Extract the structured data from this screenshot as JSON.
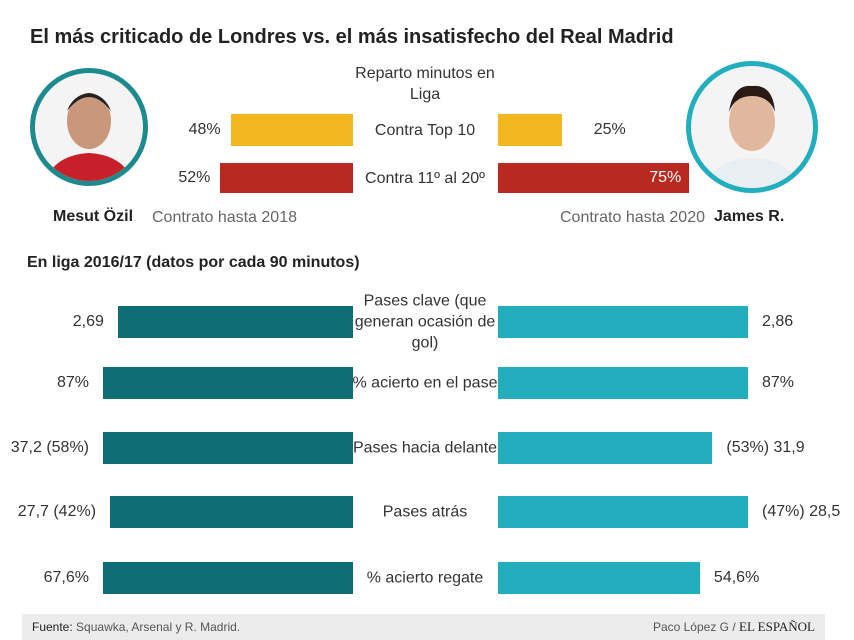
{
  "title": "El más criticado de Londres vs. el más insatisfecho del Real Madrid",
  "players": [
    {
      "name": "Mesut Özil",
      "contract": "Contrato hasta 2018"
    },
    {
      "name": "James R.",
      "contract": "Contrato hasta 2020"
    }
  ],
  "minutes": {
    "title": "Reparto minutos en Liga",
    "categories": [
      "Contra Top 10",
      "Contra 11º al 20º"
    ],
    "colors": [
      "#f2b61f",
      "#b8291f"
    ],
    "xlim": [
      0,
      100
    ],
    "left": {
      "values": [
        48,
        52
      ],
      "value_labels": [
        "48%",
        "52%"
      ]
    },
    "right": {
      "values": [
        25,
        75
      ],
      "value_labels": [
        "25%",
        "75%"
      ]
    }
  },
  "stats": {
    "title": "En liga 2016/17 (datos por cada 90 minutos)",
    "colors": [
      "#0f6e74",
      "#22aebd"
    ],
    "rows": [
      {
        "label": "Pases clave (que generan ocasión de gol)",
        "values": [
          2.69,
          2.86
        ],
        "value_labels": [
          "2,69",
          "2,86"
        ]
      },
      {
        "label": "% acierto en el pase",
        "values": [
          87,
          87
        ],
        "value_labels": [
          "87%",
          "87%"
        ]
      },
      {
        "label": "Pases hacia delante",
        "values": [
          37.2,
          31.9
        ],
        "shares": [
          58,
          53
        ],
        "value_labels": [
          "37,2 (58%)",
          "(53%) 31,9"
        ]
      },
      {
        "label": "Pases atrás",
        "values": [
          27.7,
          28.5
        ],
        "shares": [
          42,
          47
        ],
        "value_labels": [
          "27,7 (42%)",
          "(47%) 28,5"
        ]
      },
      {
        "label": "% acierto regate",
        "values": [
          67.6,
          54.6
        ],
        "value_labels": [
          "67,6%",
          "54,6%"
        ]
      }
    ]
  },
  "footer": {
    "source_label": "Fuente:",
    "source": "Squawka, Arsenal y  R. Madrid.",
    "author": "Paco López G",
    "separator": "/",
    "brand": "EL ESPAÑOL"
  }
}
